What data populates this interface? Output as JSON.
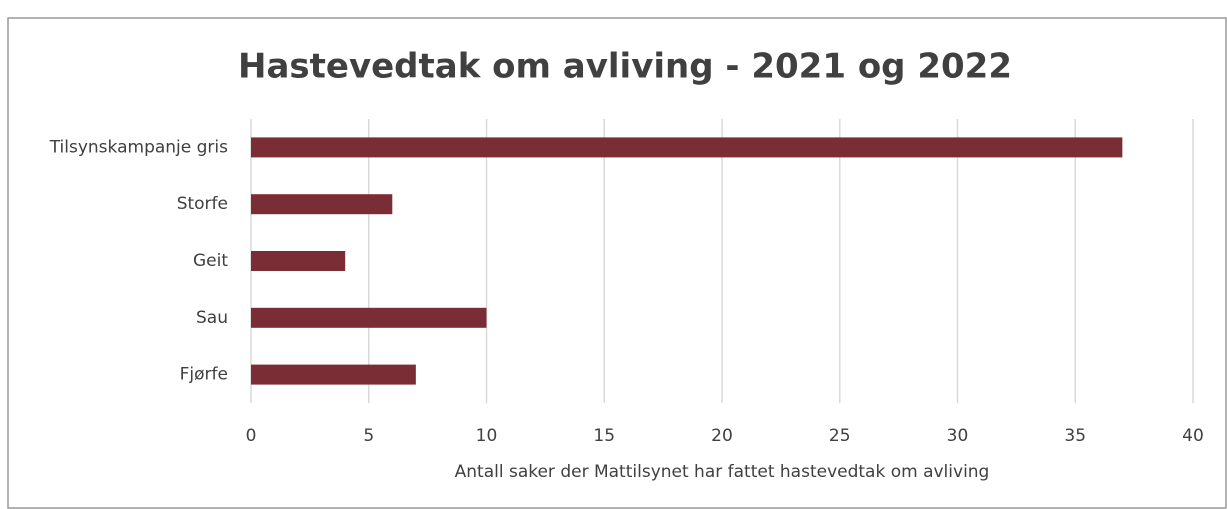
{
  "chart_data": {
    "type": "hbar",
    "title": "Hastevedtak om avliving - 2021 og 2022",
    "categories": [
      "Tilsynskampanje gris",
      "Storfe",
      "Geit",
      "Sau",
      "Fjørfe"
    ],
    "values": [
      37,
      6,
      4,
      10,
      7
    ],
    "color": "#7b2d35",
    "xlabel": "Antall saker der Mattilsynet har fattet hastevedtak om avliving",
    "xlim": [
      0,
      40
    ],
    "xticks": [
      0,
      5,
      10,
      15,
      20,
      25,
      30,
      35,
      40
    ],
    "grid": true
  }
}
